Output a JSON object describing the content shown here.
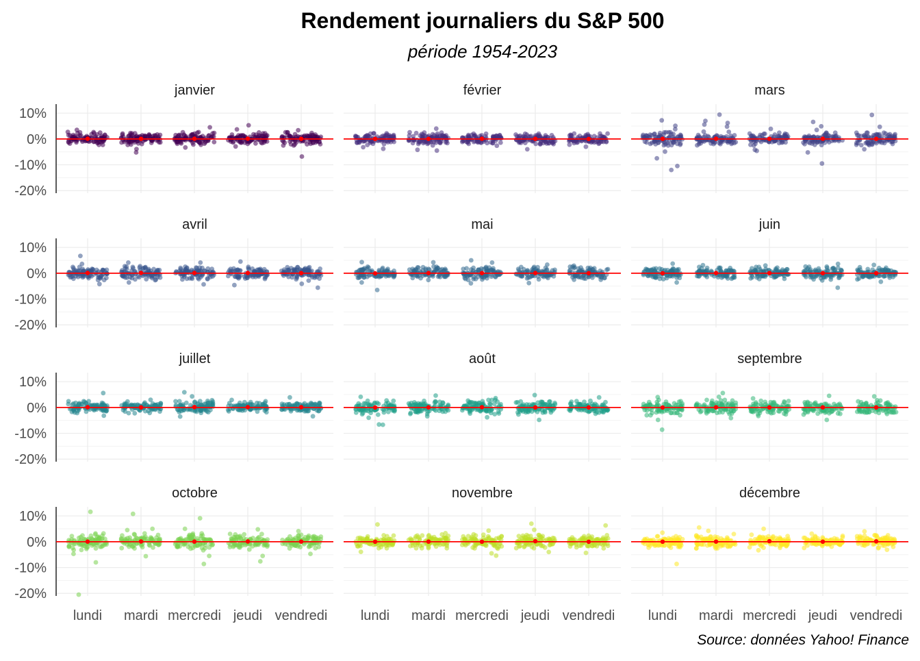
{
  "title": "Rendement journaliers du S&P 500",
  "subtitle": "période 1954-2023",
  "caption": "Source: données Yahoo! Finance",
  "chart_data": {
    "type": "scatter",
    "facets": {
      "rows": 4,
      "cols": 3
    },
    "categories": [
      "lundi",
      "mardi",
      "mercredi",
      "jeudi",
      "vendredi"
    ],
    "yticks": [
      10,
      0,
      -10,
      -20
    ],
    "ytick_labels": [
      "10%",
      "0%",
      "-10%",
      "-20%"
    ],
    "ylim": [
      -21,
      13.5
    ],
    "unit": "%",
    "grid": true,
    "reference_line": {
      "value": 0,
      "color": "#ff0000"
    },
    "mean_marker_color": "#ff0000",
    "point_opacity": 0.55,
    "panels": [
      {
        "month": "janvier",
        "color": "#440154",
        "means": [
          0.1,
          0.05,
          0.08,
          0.12,
          0.05
        ],
        "spread": [
          [
            -2.5,
            2.7
          ],
          [
            -2.3,
            2.5
          ],
          [
            -2.5,
            2.7
          ],
          [
            -2.3,
            2.5
          ],
          [
            -2.5,
            2.6
          ]
        ],
        "outliers": [
          [
            0,
            3.5
          ],
          [
            1,
            -3.9
          ],
          [
            1,
            -5.2
          ],
          [
            2,
            4.5
          ],
          [
            2,
            -3.3
          ],
          [
            3,
            5.3
          ],
          [
            3,
            3.7
          ],
          [
            3,
            -2.9
          ],
          [
            4,
            3.4
          ],
          [
            4,
            -6.8
          ]
        ]
      },
      {
        "month": "février",
        "color": "#472f7d",
        "means": [
          0.02,
          0.05,
          0.08,
          0.05,
          0.03
        ],
        "spread": [
          [
            -2.4,
            2.2
          ],
          [
            -2.6,
            2.6
          ],
          [
            -2.0,
            2.0
          ],
          [
            -2.2,
            2.2
          ],
          [
            -2.2,
            2.1
          ]
        ],
        "outliers": [
          [
            0,
            -3.8
          ],
          [
            0,
            -3.2
          ],
          [
            1,
            4.0
          ],
          [
            1,
            -4.5
          ],
          [
            1,
            -4.2
          ],
          [
            2,
            -2.6
          ],
          [
            3,
            -4.0
          ],
          [
            4,
            -3.0
          ]
        ]
      },
      {
        "month": "mars",
        "color": "#414487",
        "means": [
          0.05,
          0.1,
          0.05,
          0.08,
          0.05
        ],
        "spread": [
          [
            -2.8,
            2.6
          ],
          [
            -2.6,
            3.0
          ],
          [
            -2.5,
            2.4
          ],
          [
            -2.5,
            2.4
          ],
          [
            -2.4,
            2.4
          ]
        ],
        "outliers": [
          [
            0,
            7.2
          ],
          [
            0,
            5.1
          ],
          [
            0,
            3.8
          ],
          [
            0,
            -4.9
          ],
          [
            0,
            -7.5
          ],
          [
            0,
            -12.0
          ],
          [
            0,
            -10.5
          ],
          [
            1,
            6.2
          ],
          [
            1,
            4.8
          ],
          [
            1,
            9.4
          ],
          [
            1,
            7.0
          ],
          [
            1,
            5.6
          ],
          [
            2,
            3.9
          ],
          [
            2,
            -4.6
          ],
          [
            2,
            -4.2
          ],
          [
            3,
            6.6
          ],
          [
            3,
            4.9
          ],
          [
            3,
            3.5
          ],
          [
            3,
            -5.2
          ],
          [
            3,
            -9.5
          ],
          [
            4,
            9.3
          ],
          [
            4,
            4.7
          ],
          [
            4,
            -4.0
          ]
        ]
      },
      {
        "month": "avril",
        "color": "#39568c",
        "means": [
          0.1,
          0.12,
          0.1,
          0.1,
          0.05
        ],
        "spread": [
          [
            -2.6,
            2.4
          ],
          [
            -2.7,
            2.9
          ],
          [
            -2.6,
            2.5
          ],
          [
            -2.3,
            2.6
          ],
          [
            -3.0,
            2.3
          ]
        ],
        "outliers": [
          [
            0,
            6.7
          ],
          [
            0,
            3.6
          ],
          [
            0,
            -4.2
          ],
          [
            1,
            4.1
          ],
          [
            1,
            -3.6
          ],
          [
            2,
            4.1
          ],
          [
            2,
            -4.3
          ],
          [
            3,
            4.5
          ],
          [
            3,
            -4.6
          ],
          [
            4,
            -4.1
          ],
          [
            4,
            -5.6
          ]
        ]
      },
      {
        "month": "mai",
        "color": "#31688e",
        "means": [
          -0.05,
          0.08,
          0.05,
          0.08,
          0.03
        ],
        "spread": [
          [
            -2.8,
            2.5
          ],
          [
            -2.6,
            2.8
          ],
          [
            -2.6,
            2.8
          ],
          [
            -2.4,
            2.4
          ],
          [
            -2.5,
            2.5
          ]
        ],
        "outliers": [
          [
            0,
            4.3
          ],
          [
            0,
            -6.5
          ],
          [
            0,
            -3.6
          ],
          [
            1,
            4.2
          ],
          [
            2,
            5.0
          ],
          [
            2,
            4.1
          ],
          [
            2,
            -3.9
          ],
          [
            3,
            3.3
          ],
          [
            3,
            -3.8
          ],
          [
            4,
            2.9
          ]
        ]
      },
      {
        "month": "juin",
        "color": "#2c728e",
        "means": [
          0.0,
          0.08,
          0.05,
          0.03,
          0.02
        ],
        "spread": [
          [
            -2.6,
            2.5
          ],
          [
            -2.3,
            2.4
          ],
          [
            -2.3,
            2.4
          ],
          [
            -2.8,
            2.6
          ],
          [
            -2.6,
            2.5
          ]
        ],
        "outliers": [
          [
            0,
            -3.6
          ],
          [
            0,
            3.7
          ],
          [
            1,
            3.1
          ],
          [
            2,
            3.0
          ],
          [
            3,
            3.6
          ],
          [
            3,
            -5.6
          ],
          [
            4,
            3.2
          ],
          [
            4,
            -3.3
          ]
        ]
      },
      {
        "month": "juillet",
        "color": "#25858e",
        "means": [
          0.1,
          0.05,
          0.15,
          0.12,
          0.12
        ],
        "spread": [
          [
            -2.4,
            2.4
          ],
          [
            -2.3,
            2.3
          ],
          [
            -2.4,
            2.8
          ],
          [
            -2.3,
            2.4
          ],
          [
            -2.2,
            2.4
          ]
        ],
        "outliers": [
          [
            0,
            5.6
          ],
          [
            0,
            -3.2
          ],
          [
            1,
            3.0
          ],
          [
            2,
            5.9
          ],
          [
            2,
            4.3
          ],
          [
            2,
            -3.5
          ],
          [
            3,
            2.9
          ],
          [
            4,
            3.9
          ],
          [
            4,
            -3.4
          ]
        ]
      },
      {
        "month": "août",
        "color": "#1f9e89",
        "means": [
          0.0,
          0.05,
          0.12,
          0.03,
          0.03
        ],
        "spread": [
          [
            -3.0,
            2.7
          ],
          [
            -2.5,
            2.6
          ],
          [
            -2.7,
            2.9
          ],
          [
            -2.8,
            2.7
          ],
          [
            -2.5,
            2.6
          ]
        ],
        "outliers": [
          [
            0,
            4.1
          ],
          [
            0,
            -6.7
          ],
          [
            0,
            -4.0
          ],
          [
            0,
            -6.6
          ],
          [
            1,
            4.6
          ],
          [
            1,
            -3.4
          ],
          [
            2,
            3.6
          ],
          [
            2,
            -3.8
          ],
          [
            3,
            4.8
          ],
          [
            3,
            -4.8
          ],
          [
            4,
            3.9
          ]
        ]
      },
      {
        "month": "septembre",
        "color": "#35b779",
        "means": [
          0.0,
          0.05,
          0.03,
          0.05,
          0.03
        ],
        "spread": [
          [
            -3.0,
            2.9
          ],
          [
            -3.2,
            3.0
          ],
          [
            -2.7,
            2.8
          ],
          [
            -3.0,
            3.0
          ],
          [
            -2.8,
            2.8
          ]
        ],
        "outliers": [
          [
            0,
            4.0
          ],
          [
            0,
            -4.8
          ],
          [
            0,
            -8.6
          ],
          [
            1,
            5.6
          ],
          [
            1,
            4.1
          ],
          [
            1,
            -4.1
          ],
          [
            2,
            3.5
          ],
          [
            2,
            -3.3
          ],
          [
            3,
            4.5
          ],
          [
            3,
            -4.8
          ],
          [
            4,
            4.3
          ]
        ]
      },
      {
        "month": "octobre",
        "color": "#7ad151",
        "means": [
          0.05,
          0.1,
          0.05,
          0.1,
          0.05
        ],
        "spread": [
          [
            -3.2,
            3.2
          ],
          [
            -3.0,
            3.2
          ],
          [
            -3.3,
            3.2
          ],
          [
            -3.0,
            3.2
          ],
          [
            -3.0,
            2.9
          ]
        ],
        "outliers": [
          [
            0,
            11.6
          ],
          [
            0,
            -8.0
          ],
          [
            0,
            -20.5
          ],
          [
            0,
            -4.7
          ],
          [
            1,
            10.8
          ],
          [
            1,
            5.0
          ],
          [
            1,
            4.5
          ],
          [
            1,
            -5.6
          ],
          [
            2,
            9.1
          ],
          [
            2,
            5.0
          ],
          [
            2,
            -5.5
          ],
          [
            2,
            -8.6
          ],
          [
            3,
            4.8
          ],
          [
            3,
            -5.5
          ],
          [
            3,
            -7.6
          ],
          [
            4,
            4.1
          ],
          [
            4,
            -4.7
          ]
        ]
      },
      {
        "month": "novembre",
        "color": "#bddf26",
        "means": [
          0.03,
          0.05,
          0.02,
          0.2,
          0.0
        ],
        "spread": [
          [
            -2.5,
            2.6
          ],
          [
            -2.5,
            2.8
          ],
          [
            -2.7,
            2.9
          ],
          [
            -2.5,
            2.6
          ],
          [
            -2.7,
            2.5
          ]
        ],
        "outliers": [
          [
            0,
            6.7
          ],
          [
            0,
            -3.9
          ],
          [
            1,
            3.3
          ],
          [
            2,
            4.3
          ],
          [
            2,
            -4.5
          ],
          [
            2,
            -5.4
          ],
          [
            3,
            7.0
          ],
          [
            3,
            4.6
          ],
          [
            3,
            -4.0
          ],
          [
            4,
            6.3
          ],
          [
            4,
            -4.3
          ]
        ]
      },
      {
        "month": "décembre",
        "color": "#fde725",
        "means": [
          0.03,
          0.05,
          0.2,
          0.03,
          0.15
        ],
        "spread": [
          [
            -2.5,
            2.5
          ],
          [
            -2.8,
            3.0
          ],
          [
            -2.4,
            2.7
          ],
          [
            -2.5,
            2.5
          ],
          [
            -2.5,
            2.6
          ]
        ],
        "outliers": [
          [
            0,
            -8.6
          ],
          [
            0,
            3.5
          ],
          [
            1,
            5.5
          ],
          [
            1,
            4.2
          ],
          [
            2,
            5.0
          ],
          [
            2,
            -3.3
          ],
          [
            3,
            3.1
          ],
          [
            4,
            4.0
          ],
          [
            4,
            -3.1
          ]
        ]
      }
    ]
  }
}
